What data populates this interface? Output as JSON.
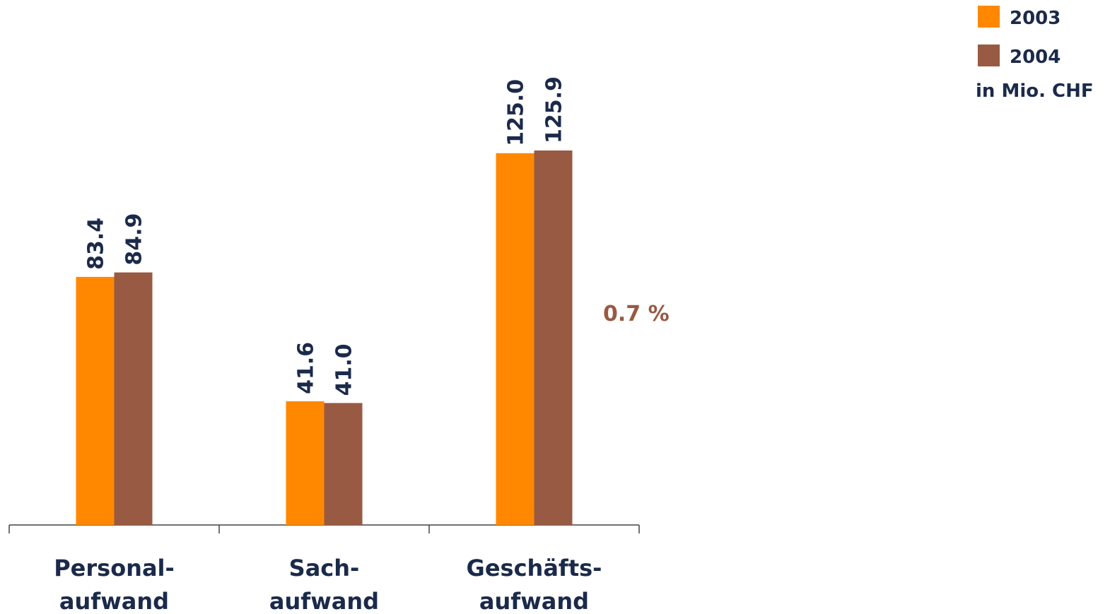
{
  "chart_data": {
    "type": "bar",
    "categories": [
      "Personal-\naufwand",
      "Sach-\naufwand",
      "Geschäfts-\naufwand"
    ],
    "series": [
      {
        "name": "2003",
        "color": "#ff8800",
        "values": [
          83.4,
          41.6,
          125.0
        ],
        "value_labels": [
          "83.4",
          "41.6",
          "125.0"
        ]
      },
      {
        "name": "2004",
        "color": "#985a42",
        "values": [
          84.9,
          41.0,
          125.9
        ],
        "value_labels": [
          "84.9",
          "41.0",
          "125.9"
        ]
      }
    ],
    "unit": "in Mio. CHF",
    "annotation": {
      "text": "0.7 %",
      "color": "#985a42"
    },
    "legend": "top-right"
  }
}
